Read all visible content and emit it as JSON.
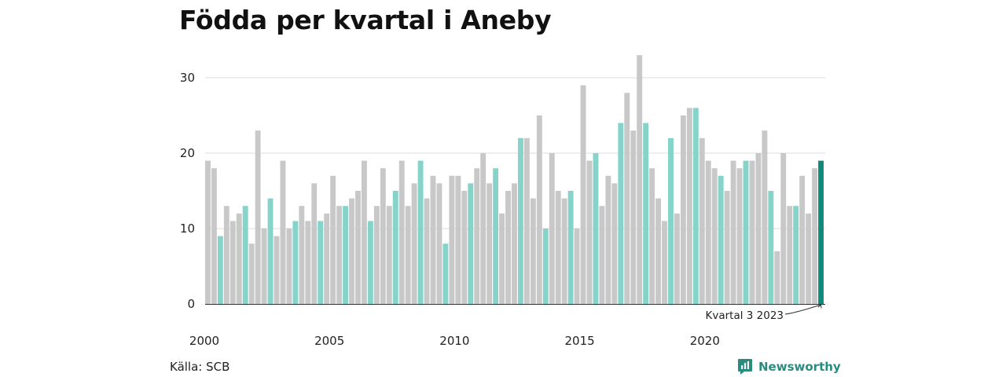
{
  "title": "Födda per kvartal i Aneby",
  "source": "Källa: SCB",
  "brand": "Newsworthy",
  "colors": {
    "regular": "#c8c8c8",
    "highlight": "#86d4c9",
    "latest": "#12897c",
    "grid": "#dddddd",
    "brand": "#2a8c7f"
  },
  "chart_data": {
    "type": "bar",
    "y_ticks": [
      0,
      10,
      20,
      30
    ],
    "ylim": [
      0,
      33
    ],
    "x_tick_labels": [
      "2000",
      "2005",
      "2010",
      "2015",
      "2020"
    ],
    "grid": "horizontal",
    "highlighted_quarter": 3,
    "annotation": "Kvartal 3 2023",
    "series": [
      {
        "values": [
          19,
          18,
          9,
          13,
          11,
          12,
          13,
          8,
          23,
          10,
          14,
          9,
          19,
          10,
          11,
          13,
          11,
          16,
          11,
          12,
          17,
          13,
          13,
          14,
          15,
          19,
          11,
          13,
          18,
          13,
          15,
          19,
          13,
          16,
          19,
          14,
          17,
          16,
          8,
          17,
          17,
          15,
          16,
          18,
          20,
          16,
          18,
          12,
          15,
          16,
          22,
          22,
          14,
          25,
          10,
          20,
          15,
          14,
          15,
          10,
          29,
          19,
          20,
          13,
          17,
          16,
          24,
          28,
          23,
          33,
          24,
          18,
          14,
          11,
          22,
          12,
          25,
          26,
          26,
          22,
          19,
          18,
          17,
          15,
          19,
          18,
          19,
          19,
          20,
          23,
          15,
          7,
          20,
          13,
          13,
          17,
          12,
          18,
          19
        ]
      }
    ]
  }
}
